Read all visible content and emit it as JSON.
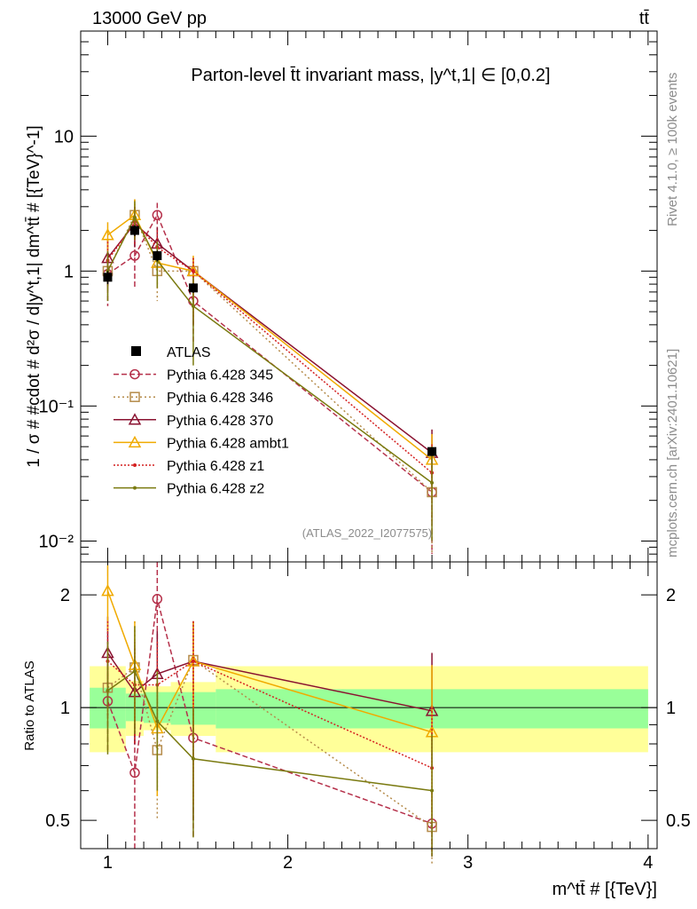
{
  "header": {
    "left": "13000 GeV pp",
    "right": "tt̄"
  },
  "side_texts": {
    "rivet": "Rivet 4.1.0, ≥ 100k events",
    "mcplots": "mcplots.cern.ch [arXiv:2401.10621]"
  },
  "chart_data": [
    {
      "type": "scatter",
      "title": "Parton-level t̄t invariant mass, |y^t,1| ∈ [0,0.2]",
      "ylabel": "1 / σ # #cdot # d²σ / d|y^t,1| dm^tt̄ # [{TeV}^-1]",
      "yscale": "log",
      "ylim": [
        0.007,
        60
      ],
      "xlim": [
        0.85,
        4.05
      ],
      "yticks": [
        {
          "v": 0.01,
          "label": "10⁻²"
        },
        {
          "v": 0.1,
          "label": "10⁻¹"
        },
        {
          "v": 1,
          "label": "1"
        },
        {
          "v": 10,
          "label": "10"
        }
      ],
      "watermark": "(ATLAS_2022_I2077575)",
      "legend_position": "center-left",
      "data": {
        "name": "ATLAS",
        "x": [
          1.0,
          1.15,
          1.275,
          1.475,
          2.8
        ],
        "y": [
          0.9,
          2.0,
          1.3,
          0.75,
          0.046
        ],
        "yerr_lo": [
          0.1,
          0.18,
          0.12,
          0.06,
          0.003
        ],
        "yerr_hi": [
          0.1,
          0.18,
          0.12,
          0.06,
          0.003
        ]
      },
      "series": [
        {
          "name": "Pythia 6.428 345",
          "color": "#b5304a",
          "marker": "circle",
          "dash": "6,3",
          "x": [
            1.0,
            1.15,
            1.275,
            1.475,
            2.8
          ],
          "y": [
            0.95,
            1.3,
            2.6,
            0.6,
            0.023
          ],
          "lo": [
            0.55,
            0.75,
            2.0,
            0.3,
            0.008
          ],
          "hi": [
            1.3,
            1.9,
            3.2,
            0.85,
            0.042
          ]
        },
        {
          "name": "Pythia 6.428 346",
          "color": "#b58b4a",
          "marker": "square",
          "dash": "2,3",
          "x": [
            1.0,
            1.15,
            1.275,
            1.475,
            2.8
          ],
          "y": [
            1.0,
            2.6,
            1.0,
            1.0,
            0.023
          ],
          "lo": [
            0.65,
            1.8,
            0.6,
            0.35,
            0.008
          ],
          "hi": [
            1.35,
            3.4,
            1.4,
            1.25,
            0.045
          ]
        },
        {
          "name": "Pythia 6.428 370",
          "color": "#8a1230",
          "marker": "triangle",
          "dash": "",
          "x": [
            1.0,
            1.15,
            1.275,
            1.475,
            2.8
          ],
          "y": [
            1.25,
            2.25,
            1.6,
            1.0,
            0.045
          ],
          "lo": [
            0.75,
            1.5,
            1.1,
            0.4,
            0.025
          ],
          "hi": [
            1.7,
            3.0,
            2.1,
            1.25,
            0.067
          ]
        },
        {
          "name": "Pythia 6.428 ambt1",
          "color": "#f0aa00",
          "marker": "triangle",
          "dash": "",
          "x": [
            1.0,
            1.15,
            1.275,
            1.475,
            2.8
          ],
          "y": [
            1.85,
            2.6,
            1.15,
            1.0,
            0.04
          ],
          "lo": [
            1.4,
            1.8,
            0.75,
            0.45,
            0.02
          ],
          "hi": [
            2.3,
            3.4,
            1.6,
            1.3,
            0.062
          ]
        },
        {
          "name": "Pythia 6.428 z1",
          "color": "#d42020",
          "marker": "dot",
          "dash": "2,2",
          "x": [
            1.0,
            1.15,
            1.275,
            1.475,
            2.8
          ],
          "y": [
            1.2,
            2.3,
            1.5,
            1.0,
            0.032
          ],
          "lo": [
            0.75,
            1.6,
            1.0,
            0.4,
            0.014
          ],
          "hi": [
            1.65,
            3.0,
            2.0,
            1.25,
            0.052
          ]
        },
        {
          "name": "Pythia 6.428 z2",
          "color": "#7a7a10",
          "marker": "dot",
          "dash": "",
          "x": [
            1.0,
            1.15,
            1.275,
            1.475,
            2.8
          ],
          "y": [
            1.0,
            2.5,
            1.2,
            0.55,
            0.027
          ],
          "lo": [
            0.6,
            1.7,
            0.75,
            0.2,
            0.01
          ],
          "hi": [
            1.4,
            3.3,
            1.65,
            0.9,
            0.05
          ]
        }
      ]
    },
    {
      "type": "scatter",
      "ylabel": "Ratio to ATLAS",
      "xlabel": "m^tt̄ # [{TeV}]",
      "yscale": "log",
      "ylim": [
        0.42,
        2.45
      ],
      "xlim": [
        0.85,
        4.05
      ],
      "yticks": [
        {
          "v": 0.5,
          "label": "0.5"
        },
        {
          "v": 1,
          "label": "1"
        },
        {
          "v": 2,
          "label": "2"
        }
      ],
      "xticks": [
        {
          "v": 1,
          "label": "1"
        },
        {
          "v": 2,
          "label": "2"
        },
        {
          "v": 3,
          "label": "3"
        },
        {
          "v": 4,
          "label": "4"
        }
      ],
      "bands": [
        {
          "x0": 0.9,
          "x1": 1.1,
          "stat_lo": 0.88,
          "stat_hi": 1.13,
          "tot_lo": 0.76,
          "tot_hi": 1.29
        },
        {
          "x0": 1.1,
          "x1": 1.2,
          "stat_lo": 0.92,
          "stat_hi": 1.09,
          "tot_lo": 0.84,
          "tot_hi": 1.18
        },
        {
          "x0": 1.2,
          "x1": 1.35,
          "stat_lo": 0.91,
          "stat_hi": 1.1,
          "tot_lo": 0.87,
          "tot_hi": 1.14
        },
        {
          "x0": 1.35,
          "x1": 1.6,
          "stat_lo": 0.9,
          "stat_hi": 1.1,
          "tot_lo": 0.84,
          "tot_hi": 1.17
        },
        {
          "x0": 1.6,
          "x1": 4.0,
          "stat_lo": 0.88,
          "stat_hi": 1.12,
          "tot_lo": 0.76,
          "tot_hi": 1.29
        }
      ],
      "series": [
        {
          "name": "Pythia 6.428 345",
          "color": "#b5304a",
          "marker": "circle",
          "dash": "6,3",
          "x": [
            1.0,
            1.15,
            1.275,
            1.475,
            2.8
          ],
          "y": [
            1.04,
            0.67,
            1.95,
            0.83,
            0.49
          ],
          "lo": [
            0.76,
            0.42,
            1.45,
            0.45,
            0.4
          ],
          "hi": [
            1.3,
            1.0,
            2.45,
            1.25,
            0.6
          ]
        },
        {
          "name": "Pythia 6.428 346",
          "color": "#b58b4a",
          "marker": "square",
          "dash": "2,3",
          "x": [
            1.0,
            1.15,
            1.275,
            1.475,
            2.8
          ],
          "y": [
            1.13,
            1.28,
            0.77,
            1.34,
            0.48
          ],
          "lo": [
            0.8,
            0.9,
            0.5,
            0.5,
            0.38
          ],
          "hi": [
            1.5,
            1.7,
            1.1,
            1.7,
            0.6
          ]
        },
        {
          "name": "Pythia 6.428 370",
          "color": "#8a1230",
          "marker": "triangle",
          "dash": "",
          "x": [
            1.0,
            1.15,
            1.275,
            1.475,
            2.8
          ],
          "y": [
            1.4,
            1.1,
            1.23,
            1.33,
            0.98
          ],
          "lo": [
            1.0,
            0.8,
            0.85,
            0.5,
            0.7
          ],
          "hi": [
            1.75,
            1.45,
            1.6,
            1.7,
            1.4
          ]
        },
        {
          "name": "Pythia 6.428 ambt1",
          "color": "#f0aa00",
          "marker": "triangle",
          "dash": "",
          "x": [
            1.0,
            1.15,
            1.275,
            1.475,
            2.8
          ],
          "y": [
            2.05,
            1.3,
            0.88,
            1.33,
            0.86
          ],
          "lo": [
            1.6,
            0.9,
            0.58,
            0.55,
            0.5
          ],
          "hi": [
            2.4,
            1.7,
            1.25,
            1.7,
            1.3
          ]
        },
        {
          "name": "Pythia 6.428 z1",
          "color": "#d42020",
          "marker": "dot",
          "dash": "2,2",
          "x": [
            1.0,
            1.15,
            1.275,
            1.475,
            2.8
          ],
          "y": [
            1.33,
            1.15,
            1.15,
            1.33,
            0.69
          ],
          "lo": [
            0.95,
            0.8,
            0.8,
            0.55,
            0.4
          ],
          "hi": [
            1.7,
            1.5,
            1.5,
            1.7,
            1.0
          ]
        },
        {
          "name": "Pythia 6.428 z2",
          "color": "#7a7a10",
          "marker": "dot",
          "dash": "",
          "x": [
            1.0,
            1.15,
            1.275,
            1.475,
            2.8
          ],
          "y": [
            1.11,
            1.25,
            0.92,
            0.73,
            0.6
          ],
          "lo": [
            0.75,
            0.85,
            0.6,
            0.45,
            0.4
          ],
          "hi": [
            1.5,
            1.65,
            1.25,
            1.0,
            0.85
          ]
        }
      ]
    }
  ]
}
